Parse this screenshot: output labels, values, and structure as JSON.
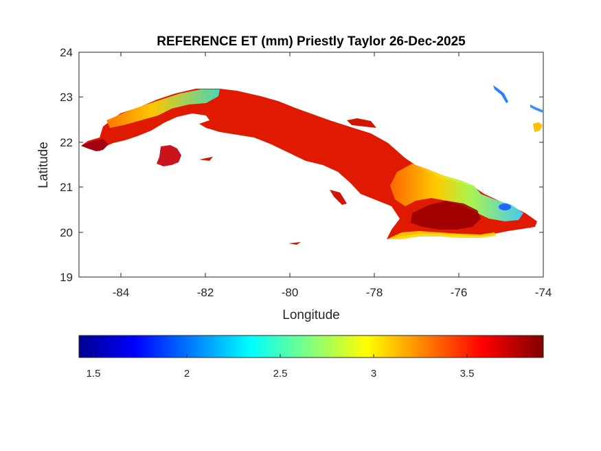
{
  "figure": {
    "title": "REFERENCE ET (mm) Priestly Taylor 26-Dec-2025",
    "xlabel": "Longitude",
    "ylabel": "Latitude",
    "xticks": [
      "-84",
      "-82",
      "-80",
      "-78",
      "-76",
      "-74"
    ],
    "yticks": [
      "24",
      "23",
      "22",
      "21",
      "20",
      "19"
    ],
    "xlim": [
      -85,
      -74
    ],
    "ylim": [
      19,
      24
    ]
  },
  "colorbar": {
    "colormap": "jet",
    "range": [
      1.35,
      3.92
    ],
    "ticks": [
      "1.5",
      "2",
      "2.5",
      "3",
      "3.5"
    ],
    "colors": [
      "#00008f",
      "#0000ff",
      "#00ffff",
      "#ffff00",
      "#ff0000",
      "#800000"
    ]
  },
  "map": {
    "region": "Cuba",
    "dominant_color": "#e01a00",
    "highlight_colors": [
      "#3fd1ff",
      "#a8ff52",
      "#ffd400",
      "#2266ff",
      "#9a0000"
    ]
  }
}
